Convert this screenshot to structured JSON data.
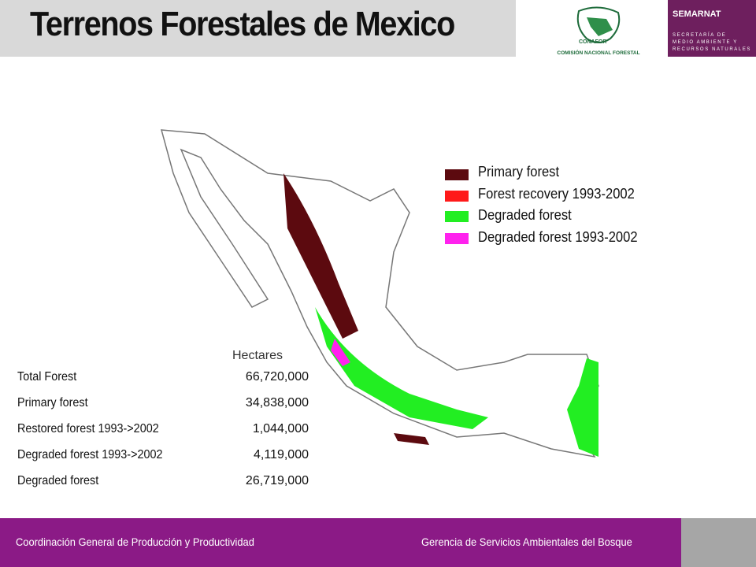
{
  "header": {
    "title": "Terrenos Forestales de Mexico",
    "logo_left": {
      "name": "CONAFOR",
      "subtitle": "COMISIÓN NACIONAL FORESTAL"
    },
    "logo_right": {
      "name": "SEMARNAT",
      "lines": [
        "SECRETARÍA DE",
        "MEDIO AMBIENTE Y",
        "RECURSOS NATURALES"
      ]
    }
  },
  "legend": {
    "items": [
      {
        "label": "Primary forest",
        "color": "#5c0a0f"
      },
      {
        "label": "Forest recovery  1993-2002",
        "color": "#ff1a1a"
      },
      {
        "label": "Degraded forest",
        "color": "#22ee22"
      },
      {
        "label": "Degraded  forest 1993-2002",
        "color": "#ff22ee"
      }
    ]
  },
  "table": {
    "header": "Hectares",
    "rows": [
      [
        "Total Forest",
        "66,720,000"
      ],
      [
        "Primary forest",
        "34,838,000"
      ],
      [
        "Restored forest 1993->2002",
        "1,044,000"
      ],
      [
        "Degraded forest 1993->2002",
        "4,119,000"
      ],
      [
        "Degraded forest",
        "26,719,000"
      ]
    ]
  },
  "footer": {
    "left": "Coordinación General de Producción y Productividad",
    "right": "Gerencia de Servicios Ambientales del Bosque"
  }
}
